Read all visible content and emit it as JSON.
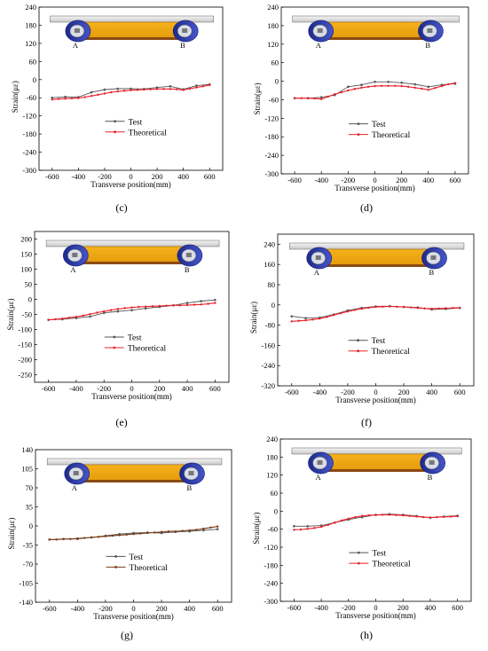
{
  "chart_data": [
    {
      "panel_label": "(c)",
      "type": "line",
      "xlabel": "Transverse position(mm)",
      "ylabel": "Strain(με)",
      "xlim": [
        -700,
        700
      ],
      "ylim": [
        -300,
        240
      ],
      "xticks": [
        -600,
        -400,
        -200,
        0,
        200,
        400,
        600
      ],
      "yticks": [
        -300,
        -240,
        -180,
        -120,
        -60,
        0,
        60,
        120,
        180,
        240
      ],
      "legend": "bottom-center",
      "inset": {
        "left_label": "A",
        "right_label": "B"
      },
      "series": [
        {
          "name": "Test",
          "color": "#555555",
          "x": [
            -600,
            -500,
            -400,
            -300,
            -200,
            -100,
            0,
            100,
            200,
            300,
            400,
            500,
            600
          ],
          "y": [
            -60,
            -57,
            -58,
            -42,
            -33,
            -30,
            -30,
            -31,
            -26,
            -22,
            -32,
            -20,
            -16
          ]
        },
        {
          "name": "Theoretical",
          "color": "#e8202a",
          "x": [
            -600,
            -550,
            -500,
            -450,
            -400,
            -350,
            -300,
            -250,
            -200,
            -150,
            -100,
            -50,
            0,
            50,
            100,
            150,
            200,
            250,
            300,
            350,
            400,
            450,
            500,
            550,
            600
          ],
          "y": [
            -66,
            -64,
            -63,
            -62,
            -61,
            -58,
            -54,
            -50,
            -46,
            -42,
            -39,
            -37,
            -35,
            -34,
            -33,
            -32,
            -31,
            -31,
            -31,
            -32,
            -34,
            -30,
            -26,
            -22,
            -18
          ]
        }
      ]
    },
    {
      "panel_label": "(d)",
      "type": "line",
      "xlabel": "Transverse position(mm)",
      "ylabel": "Strain(με)",
      "xlim": [
        -700,
        700
      ],
      "ylim": [
        -300,
        240
      ],
      "xticks": [
        -600,
        -400,
        -200,
        0,
        200,
        400,
        600
      ],
      "yticks": [
        -300,
        -240,
        -180,
        -120,
        -60,
        0,
        60,
        120,
        180,
        240
      ],
      "legend": "bottom-center",
      "inset": {
        "left_label": "A",
        "right_label": "B"
      },
      "series": [
        {
          "name": "Test",
          "color": "#555555",
          "x": [
            -600,
            -500,
            -400,
            -300,
            -200,
            -100,
            0,
            100,
            200,
            300,
            400,
            500,
            600
          ],
          "y": [
            -55,
            -55,
            -52,
            -45,
            -18,
            -12,
            -2,
            -2,
            -5,
            -10,
            -18,
            -12,
            -8
          ]
        },
        {
          "name": "Theoretical",
          "color": "#e8202a",
          "x": [
            -600,
            -550,
            -500,
            -450,
            -400,
            -350,
            -300,
            -250,
            -200,
            -150,
            -100,
            -50,
            0,
            50,
            100,
            150,
            200,
            250,
            300,
            350,
            400,
            450,
            500,
            550,
            600
          ],
          "y": [
            -55,
            -55,
            -55,
            -56,
            -58,
            -50,
            -42,
            -36,
            -30,
            -25,
            -21,
            -18,
            -16,
            -15,
            -15,
            -15,
            -16,
            -18,
            -21,
            -24,
            -28,
            -22,
            -16,
            -10,
            -6
          ]
        }
      ]
    },
    {
      "panel_label": "(e)",
      "type": "line",
      "xlabel": "Transverse position(mm)",
      "ylabel": "Strain(με)",
      "xlim": [
        -700,
        700
      ],
      "ylim": [
        -275,
        225
      ],
      "xticks": [
        -600,
        -400,
        -200,
        0,
        200,
        400,
        600
      ],
      "yticks": [
        -250,
        -200,
        -150,
        -100,
        -50,
        0,
        50,
        100,
        150,
        200
      ],
      "legend": "bottom-center",
      "inset": {
        "left_label": "A",
        "right_label": "B"
      },
      "series": [
        {
          "name": "Test",
          "color": "#555555",
          "x": [
            -600,
            -500,
            -400,
            -300,
            -200,
            -100,
            0,
            100,
            200,
            300,
            400,
            500,
            600
          ],
          "y": [
            -68,
            -66,
            -62,
            -57,
            -45,
            -40,
            -36,
            -30,
            -25,
            -20,
            -12,
            -6,
            -2
          ]
        },
        {
          "name": "Theoretical",
          "color": "#e8202a",
          "x": [
            -600,
            -550,
            -500,
            -450,
            -400,
            -350,
            -300,
            -250,
            -200,
            -150,
            -100,
            -50,
            0,
            50,
            100,
            150,
            200,
            250,
            300,
            350,
            400,
            450,
            500,
            550,
            600
          ],
          "y": [
            -68,
            -66,
            -64,
            -61,
            -58,
            -54,
            -49,
            -44,
            -40,
            -36,
            -32,
            -29,
            -27,
            -25,
            -24,
            -23,
            -22,
            -21,
            -20,
            -20,
            -19,
            -18,
            -17,
            -15,
            -12
          ]
        }
      ]
    },
    {
      "panel_label": "(f)",
      "type": "line",
      "xlabel": "Transverse position(mm)",
      "ylabel": "Strain(με)",
      "xlim": [
        -700,
        700
      ],
      "ylim": [
        -320,
        280
      ],
      "xticks": [
        -600,
        -400,
        -200,
        0,
        200,
        400,
        600
      ],
      "yticks": [
        -320,
        -240,
        -160,
        -80,
        0,
        80,
        160,
        240
      ],
      "legend": "bottom-center",
      "inset": {
        "left_label": "A",
        "right_label": "B"
      },
      "series": [
        {
          "name": "Test",
          "color": "#555555",
          "x": [
            -600,
            -500,
            -400,
            -300,
            -200,
            -100,
            0,
            100,
            200,
            300,
            400,
            500,
            600
          ],
          "y": [
            -45,
            -52,
            -50,
            -38,
            -22,
            -12,
            -6,
            -5,
            -8,
            -10,
            -18,
            -16,
            -12
          ]
        },
        {
          "name": "Theoretical",
          "color": "#e8202a",
          "x": [
            -600,
            -550,
            -500,
            -450,
            -400,
            -350,
            -300,
            -250,
            -200,
            -150,
            -100,
            -50,
            0,
            50,
            100,
            150,
            200,
            250,
            300,
            350,
            400,
            450,
            500,
            550,
            600
          ],
          "y": [
            -65,
            -63,
            -61,
            -58,
            -54,
            -48,
            -40,
            -33,
            -26,
            -20,
            -15,
            -11,
            -8,
            -7,
            -6,
            -7,
            -8,
            -10,
            -12,
            -14,
            -15,
            -14,
            -13,
            -12,
            -11
          ]
        }
      ]
    },
    {
      "panel_label": "(g)",
      "type": "line",
      "xlabel": "Transverse position(mm)",
      "ylabel": "Strain(με)",
      "xlim": [
        -700,
        700
      ],
      "ylim": [
        -140,
        140
      ],
      "xticks": [
        -600,
        -400,
        -200,
        0,
        200,
        400,
        600
      ],
      "yticks": [
        -140,
        -105,
        -70,
        -35,
        0,
        35,
        70,
        105,
        140
      ],
      "legend": "bottom-center",
      "inset": {
        "left_label": "A",
        "right_label": "B"
      },
      "series": [
        {
          "name": "Test",
          "color": "#555555",
          "x": [
            -600,
            -500,
            -400,
            -300,
            -200,
            -100,
            0,
            100,
            200,
            300,
            400,
            500,
            600
          ],
          "y": [
            -25,
            -24,
            -24,
            -21,
            -18,
            -15,
            -13,
            -12,
            -13,
            -11,
            -10,
            -8,
            -6
          ]
        },
        {
          "name": "Theoretical",
          "color": "#7a3b1a",
          "x": [
            -600,
            -550,
            -500,
            -450,
            -400,
            -350,
            -300,
            -250,
            -200,
            -150,
            -100,
            -50,
            0,
            50,
            100,
            150,
            200,
            250,
            300,
            350,
            400,
            450,
            500,
            550,
            600
          ],
          "y": [
            -25,
            -25,
            -24,
            -24,
            -23,
            -22,
            -21,
            -20,
            -19,
            -18,
            -17,
            -16,
            -15,
            -14,
            -13,
            -12,
            -11,
            -10,
            -10,
            -9,
            -8,
            -7,
            -5,
            -3,
            -1
          ]
        }
      ]
    },
    {
      "panel_label": "(h)",
      "type": "line",
      "xlabel": "Transverse position(mm)",
      "ylabel": "Strain(με)",
      "xlim": [
        -700,
        700
      ],
      "ylim": [
        -300,
        240
      ],
      "xticks": [
        -600,
        -400,
        -200,
        0,
        200,
        400,
        600
      ],
      "yticks": [
        -300,
        -240,
        -180,
        -120,
        -60,
        0,
        60,
        120,
        180,
        240
      ],
      "legend": "bottom-center",
      "inset": {
        "left_label": "A",
        "right_label": "B"
      },
      "series": [
        {
          "name": "Test",
          "color": "#555555",
          "x": [
            -600,
            -500,
            -400,
            -300,
            -200,
            -100,
            0,
            100,
            200,
            300,
            400,
            500,
            600
          ],
          "y": [
            -50,
            -50,
            -48,
            -38,
            -28,
            -20,
            -12,
            -10,
            -12,
            -16,
            -22,
            -18,
            -15
          ]
        },
        {
          "name": "Theoretical",
          "color": "#e8202a",
          "x": [
            -600,
            -550,
            -500,
            -450,
            -400,
            -350,
            -300,
            -250,
            -200,
            -150,
            -100,
            -50,
            0,
            50,
            100,
            150,
            200,
            250,
            300,
            350,
            400,
            450,
            500,
            550,
            600
          ],
          "y": [
            -62,
            -61,
            -59,
            -56,
            -52,
            -46,
            -38,
            -31,
            -25,
            -20,
            -16,
            -14,
            -13,
            -12,
            -12,
            -13,
            -14,
            -16,
            -18,
            -20,
            -21,
            -20,
            -19,
            -18,
            -17
          ]
        }
      ]
    }
  ]
}
